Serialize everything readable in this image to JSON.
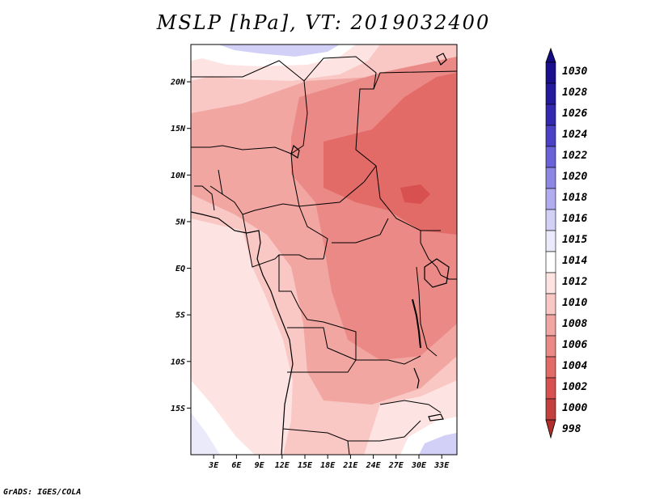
{
  "title": "MSLP [hPa], VT: 2019032400",
  "footer": "GrADS: IGES/COLA",
  "map": {
    "variable": "MSLP",
    "units": "hPa",
    "valid_time": "2019032400",
    "lon_range": [
      0,
      35
    ],
    "lat_range": [
      -20,
      24
    ],
    "lat_ticks": [
      {
        "value": 20,
        "label": "20N"
      },
      {
        "value": 15,
        "label": "15N"
      },
      {
        "value": 10,
        "label": "10N"
      },
      {
        "value": 5,
        "label": "5N"
      },
      {
        "value": 0,
        "label": "EQ"
      },
      {
        "value": -5,
        "label": "5S"
      },
      {
        "value": -10,
        "label": "10S"
      },
      {
        "value": -15,
        "label": "15S"
      }
    ],
    "lon_ticks": [
      {
        "value": 3,
        "label": "3E"
      },
      {
        "value": 6,
        "label": "6E"
      },
      {
        "value": 9,
        "label": "9E"
      },
      {
        "value": 12,
        "label": "12E"
      },
      {
        "value": 15,
        "label": "15E"
      },
      {
        "value": 18,
        "label": "18E"
      },
      {
        "value": 21,
        "label": "21E"
      },
      {
        "value": 24,
        "label": "24E"
      },
      {
        "value": 27,
        "label": "27E"
      },
      {
        "value": 30,
        "label": "30E"
      },
      {
        "value": 33,
        "label": "33E"
      }
    ]
  },
  "colorbar": {
    "levels": [
      {
        "label": "1030",
        "color": "#1a0f8c"
      },
      {
        "label": "1028",
        "color": "#241a9e"
      },
      {
        "label": "1026",
        "color": "#3328b0"
      },
      {
        "label": "1024",
        "color": "#4a41c6"
      },
      {
        "label": "1022",
        "color": "#6a62d8"
      },
      {
        "label": "1020",
        "color": "#8c86e4"
      },
      {
        "label": "1018",
        "color": "#b0acef"
      },
      {
        "label": "1016",
        "color": "#d2d0f7"
      },
      {
        "label": "1015",
        "color": "#eaeafb"
      },
      {
        "label": "1014",
        "color": "#ffffff"
      },
      {
        "label": "1012",
        "color": "#fde4e2"
      },
      {
        "label": "1010",
        "color": "#f9c7c4"
      },
      {
        "label": "1008",
        "color": "#f2a6a2"
      },
      {
        "label": "1006",
        "color": "#ea8985"
      },
      {
        "label": "1004",
        "color": "#e26a67"
      },
      {
        "label": "1002",
        "color": "#d8504f"
      },
      {
        "label": "1000",
        "color": "#c4403e"
      },
      {
        "label": "998",
        "color": "#b02e2c"
      }
    ],
    "top_arrow_color": "#140c80",
    "bottom_arrow_color": "#b02e2c"
  }
}
